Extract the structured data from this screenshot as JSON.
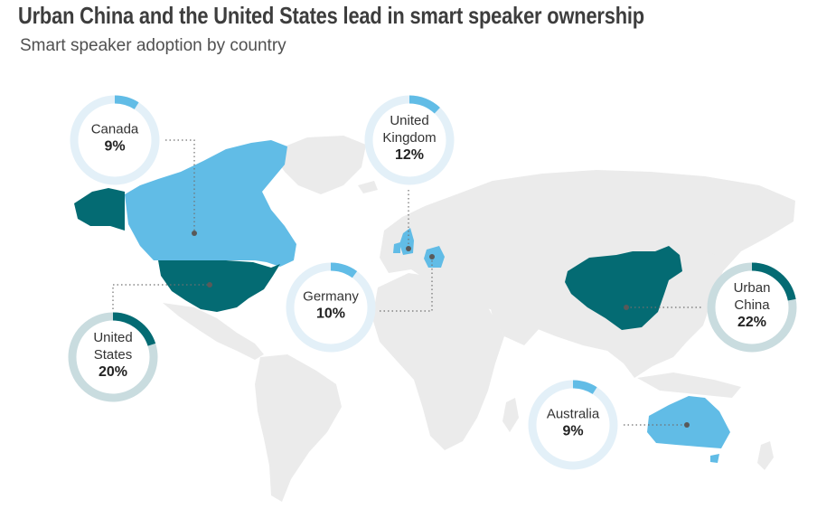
{
  "header": {
    "title": "Urban China and the United States lead in smart speaker ownership",
    "subtitle": "Smart speaker adoption by country"
  },
  "colors": {
    "land": "#ebebeb",
    "highlight_light": "#61bce6",
    "highlight_dark": "#046b73",
    "ring_light_track": "#e3f0f8",
    "ring_light_fill": "#61bce6",
    "ring_dark_track": "#c9dcdf",
    "ring_dark_fill": "#046b73"
  },
  "markers": [
    {
      "id": "canada",
      "lines": [
        "Canada"
      ],
      "value": "9%",
      "share": 0.09,
      "tone": "light"
    },
    {
      "id": "united-kingdom",
      "lines": [
        "United",
        "Kingdom"
      ],
      "value": "12%",
      "share": 0.12,
      "tone": "light"
    },
    {
      "id": "germany",
      "lines": [
        "Germany"
      ],
      "value": "10%",
      "share": 0.1,
      "tone": "light"
    },
    {
      "id": "united-states",
      "lines": [
        "United",
        "States"
      ],
      "value": "20%",
      "share": 0.2,
      "tone": "dark"
    },
    {
      "id": "urban-china",
      "lines": [
        "Urban",
        "China"
      ],
      "value": "22%",
      "share": 0.22,
      "tone": "dark"
    },
    {
      "id": "australia",
      "lines": [
        "Australia"
      ],
      "value": "9%",
      "share": 0.09,
      "tone": "light"
    }
  ]
}
